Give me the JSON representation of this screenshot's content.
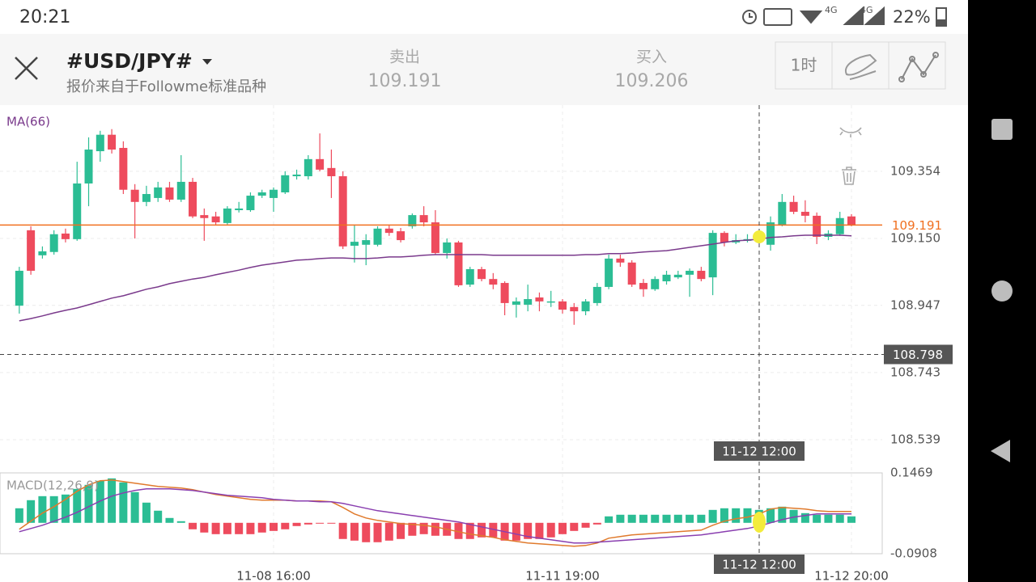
{
  "status_bar": {
    "time": "20:21",
    "network_1": "4G",
    "network_2": "4G",
    "battery": "22%"
  },
  "header": {
    "symbol": "#USD/JPY#",
    "source": "报价来自于Followme标准品种",
    "sell_label": "卖出",
    "sell_price": "109.191",
    "buy_label": "买入",
    "buy_price": "109.206",
    "timeframe": "1时"
  },
  "chart_data": {
    "type": "candlestick",
    "categories": [
      null,
      null,
      null,
      null,
      null,
      null,
      null,
      null,
      null,
      null,
      null,
      null,
      null,
      null,
      null,
      null,
      null,
      null,
      null,
      null,
      null,
      null,
      "11-08 16:00",
      null,
      null,
      null,
      null,
      null,
      null,
      null,
      null,
      null,
      null,
      null,
      null,
      null,
      null,
      null,
      null,
      null,
      null,
      null,
      null,
      null,
      null,
      null,
      null,
      "11-11 19:00",
      null,
      null,
      null,
      null,
      null,
      null,
      null,
      null,
      null,
      null,
      null,
      null,
      null,
      null,
      null,
      null,
      null,
      null,
      null,
      null,
      null,
      null,
      null,
      null,
      "11-12 20:00"
    ],
    "open": [
      108.946,
      109.175,
      109.099,
      109.109,
      109.165,
      109.148,
      109.317,
      109.415,
      109.465,
      109.425,
      109.298,
      109.261,
      109.273,
      109.305,
      109.268,
      109.322,
      109.221,
      109.217,
      109.197,
      109.236,
      109.236,
      109.28,
      109.273,
      109.29,
      109.339,
      109.339,
      109.391,
      109.364,
      109.339,
      109.128,
      109.131,
      109.131,
      109.18,
      109.172,
      109.187,
      109.221,
      109.199,
      109.106,
      109.138,
      109.01,
      109.057,
      109.027,
      109.015,
      108.949,
      108.949,
      108.971,
      108.956,
      108.959,
      108.942,
      108.929,
      108.954,
      109.003,
      109.089,
      109.077,
      109.015,
      108.996,
      109.02,
      109.032,
      109.04,
      109.052,
      109.032,
      109.167,
      109.138,
      109.143,
      109.148,
      109.131,
      109.192,
      109.261,
      109.231,
      109.219,
      109.155,
      109.163,
      109.217
    ],
    "high": [
      109.064,
      109.187,
      109.126,
      109.175,
      109.18,
      109.383,
      109.457,
      109.477,
      109.482,
      109.445,
      109.315,
      109.31,
      109.322,
      109.322,
      109.403,
      109.334,
      109.241,
      109.231,
      109.248,
      109.261,
      109.29,
      109.298,
      109.305,
      109.354,
      109.359,
      109.403,
      109.469,
      109.42,
      109.354,
      109.192,
      109.163,
      109.187,
      109.192,
      109.182,
      109.226,
      109.248,
      109.236,
      109.15,
      109.143,
      109.064,
      109.064,
      109.045,
      109.02,
      108.971,
      109.01,
      108.986,
      108.991,
      108.966,
      108.954,
      108.966,
      109.015,
      109.101,
      109.101,
      109.084,
      109.027,
      109.035,
      109.052,
      109.052,
      109.059,
      109.064,
      109.175,
      109.172,
      109.163,
      109.163,
      109.175,
      109.217,
      109.285,
      109.28,
      109.266,
      109.229,
      109.175,
      109.231,
      109.224
    ],
    "low": [
      108.922,
      109.04,
      109.089,
      109.101,
      109.138,
      109.143,
      109.248,
      109.383,
      109.408,
      109.285,
      109.15,
      109.248,
      109.261,
      109.261,
      109.261,
      109.212,
      109.143,
      109.192,
      109.192,
      109.229,
      109.231,
      109.273,
      109.231,
      109.285,
      109.329,
      109.329,
      109.354,
      109.273,
      109.118,
      109.077,
      109.069,
      109.126,
      109.158,
      109.138,
      109.18,
      109.187,
      109.101,
      109.089,
      109.003,
      109.003,
      109.02,
      108.996,
      108.917,
      108.91,
      108.929,
      108.929,
      108.942,
      108.922,
      108.888,
      108.917,
      108.946,
      108.996,
      109.064,
      109.003,
      108.973,
      108.991,
      109.01,
      109.027,
      108.973,
      109.02,
      108.978,
      109.126,
      109.133,
      109.138,
      109.138,
      109.113,
      109.187,
      109.224,
      109.199,
      109.133,
      109.145,
      109.158,
      109.187
    ],
    "close": [
      109.052,
      109.052,
      109.111,
      109.163,
      109.148,
      109.317,
      109.42,
      109.465,
      109.42,
      109.298,
      109.261,
      109.285,
      109.305,
      109.268,
      109.322,
      109.217,
      109.212,
      109.199,
      109.241,
      109.241,
      109.28,
      109.29,
      109.298,
      109.342,
      109.344,
      109.391,
      109.359,
      109.339,
      109.126,
      109.14,
      109.145,
      109.18,
      109.167,
      109.145,
      109.221,
      109.199,
      109.106,
      109.138,
      109.008,
      109.057,
      109.027,
      109.01,
      108.954,
      108.959,
      108.966,
      108.959,
      108.959,
      108.934,
      108.929,
      108.959,
      109.003,
      109.089,
      109.077,
      109.01,
      108.996,
      109.027,
      109.04,
      109.04,
      109.052,
      109.027,
      109.167,
      109.138,
      109.145,
      109.148,
      109.155,
      109.199,
      109.261,
      109.231,
      109.219,
      109.155,
      109.165,
      109.212,
      109.191
    ],
    "up_color": "#2bbd94",
    "down_color": "#ee4b5d",
    "ylim": [
      108.463,
      109.555
    ],
    "yticks": [
      108.539,
      108.743,
      108.947,
      {
        "value": 109.15,
        "label": "109.150"
      },
      109.354
    ],
    "grid": true,
    "ma": {
      "name": "MA(66)",
      "color": "#7a3a8c",
      "values": [
        108.9,
        108.907,
        108.915,
        108.924,
        108.932,
        108.939,
        108.949,
        108.959,
        108.969,
        108.976,
        108.986,
        108.996,
        109.003,
        109.013,
        109.02,
        109.027,
        109.032,
        109.04,
        109.047,
        109.054,
        109.062,
        109.069,
        109.074,
        109.079,
        109.084,
        109.086,
        109.089,
        109.091,
        109.091,
        109.089,
        109.089,
        109.091,
        109.094,
        109.094,
        109.096,
        109.099,
        109.101,
        109.101,
        109.101,
        109.101,
        109.101,
        109.099,
        109.099,
        109.099,
        109.099,
        109.099,
        109.099,
        109.099,
        109.099,
        109.101,
        109.101,
        109.104,
        109.104,
        109.106,
        109.109,
        109.111,
        109.113,
        109.118,
        109.123,
        109.128,
        109.133,
        109.138,
        109.143,
        109.145,
        109.148,
        109.153,
        109.155,
        109.158,
        109.16,
        109.16,
        109.16,
        109.16,
        109.158
      ]
    },
    "current_price": 109.191,
    "current_price_color": "#f07020",
    "crosshair": {
      "x_label": "11-12 12:00",
      "y_value": 108.798
    },
    "macd": {
      "name": "MACD(12,26,9)",
      "ylim": [
        -0.0908,
        0.1469
      ],
      "yticks": [
        -0.0908,
        0.1469
      ],
      "histogram": [
        0.0428,
        0.0666,
        0.0784,
        0.0784,
        0.0832,
        0.0998,
        0.1117,
        0.1236,
        0.1307,
        0.1189,
        0.0903,
        0.0594,
        0.0357,
        0.0143,
        0.0048,
        -0.019,
        -0.0285,
        -0.0333,
        -0.0333,
        -0.0333,
        -0.0333,
        -0.0285,
        -0.0238,
        -0.019,
        -0.0095,
        -0.0048,
        -0.0024,
        -0.0024,
        -0.0475,
        -0.0523,
        -0.057,
        -0.057,
        -0.0523,
        -0.0475,
        -0.038,
        -0.0333,
        -0.038,
        -0.038,
        -0.0475,
        -0.0475,
        -0.0428,
        -0.0428,
        -0.0523,
        -0.0523,
        -0.0475,
        -0.0475,
        -0.0428,
        -0.0333,
        -0.0238,
        -0.0143,
        -0.0048,
        0.019,
        0.0238,
        0.0238,
        0.0238,
        0.0238,
        0.0238,
        0.0238,
        0.0238,
        0.0238,
        0.038,
        0.0428,
        0.0428,
        0.0428,
        0.038,
        0.0428,
        0.0475,
        0.038,
        0.0285,
        0.0238,
        0.0238,
        0.0238,
        0.019
      ],
      "dif": {
        "color": "#e07a2c",
        "values": [
          -0.019,
          0.0048,
          0.0285,
          0.0475,
          0.0689,
          0.0927,
          0.1117,
          0.1236,
          0.126,
          0.1212,
          0.1165,
          0.1117,
          0.107,
          0.1046,
          0.1022,
          0.0975,
          0.0903,
          0.0832,
          0.0784,
          0.0737,
          0.0689,
          0.0666,
          0.0666,
          0.0666,
          0.0642,
          0.0642,
          0.0642,
          0.0618,
          0.0452,
          0.0261,
          0.0143,
          0.0071,
          0.0024,
          -0.0024,
          -0.0048,
          -0.0071,
          -0.0119,
          -0.019,
          -0.0261,
          -0.0333,
          -0.038,
          -0.0428,
          -0.0499,
          -0.0547,
          -0.0594,
          -0.0618,
          -0.0642,
          -0.0666,
          -0.0689,
          -0.0666,
          -0.0594,
          -0.0452,
          -0.0404,
          -0.0357,
          -0.0333,
          -0.0309,
          -0.0285,
          -0.0261,
          -0.0238,
          -0.0214,
          -0.0071,
          0.0048,
          0.0119,
          0.0166,
          0.0261,
          0.0404,
          0.0452,
          0.0428,
          0.0404,
          0.0357,
          0.0333,
          0.0333,
          0.0333
        ]
      },
      "dea": {
        "color": "#8a3fb0",
        "values": [
          -0.0261,
          -0.0166,
          -0.0071,
          0.0048,
          0.0166,
          0.0309,
          0.0475,
          0.0642,
          0.0784,
          0.088,
          0.0951,
          0.0998,
          0.0998,
          0.0998,
          0.0975,
          0.0951,
          0.0903,
          0.0856,
          0.0808,
          0.0784,
          0.0761,
          0.0737,
          0.0689,
          0.0666,
          0.0642,
          0.0642,
          0.0618,
          0.0618,
          0.057,
          0.0499,
          0.0428,
          0.0357,
          0.0309,
          0.0261,
          0.0214,
          0.0166,
          0.0119,
          0.0071,
          0.0024,
          -0.0048,
          -0.0119,
          -0.019,
          -0.0261,
          -0.0333,
          -0.0404,
          -0.0452,
          -0.0499,
          -0.0547,
          -0.0594,
          -0.0594,
          -0.057,
          -0.0547,
          -0.0523,
          -0.0499,
          -0.0475,
          -0.0452,
          -0.0428,
          -0.0404,
          -0.038,
          -0.0357,
          -0.0309,
          -0.0261,
          -0.0214,
          -0.0166,
          -0.0095,
          0,
          0.0095,
          0.0166,
          0.0214,
          0.0261,
          0.0261,
          0.0261,
          0.0261
        ]
      }
    }
  }
}
